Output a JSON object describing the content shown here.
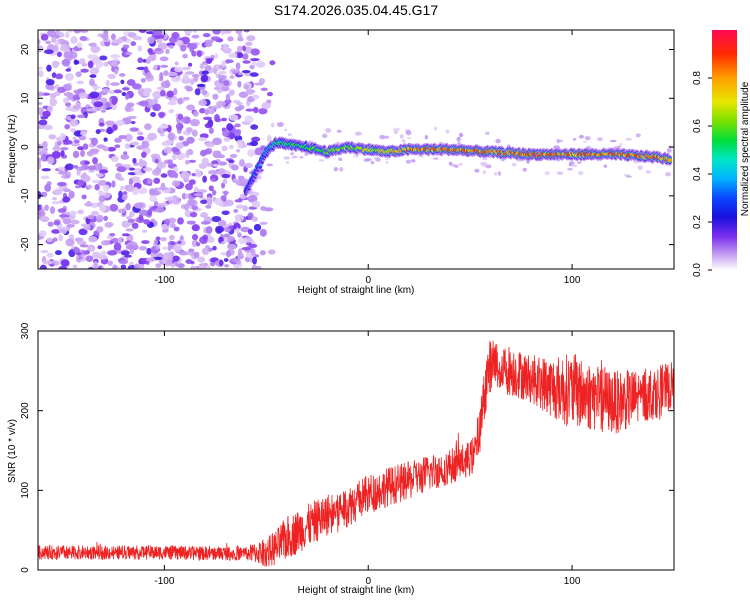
{
  "title": "S174.2026.035.04.45.G17",
  "chart_data": [
    {
      "type": "heatmap",
      "title": "S174.2026.035.04.45.G17",
      "xlabel": "Height of straight line (km)",
      "ylabel": "Frequency (Hz)",
      "xlim": [
        -162,
        150
      ],
      "ylim": [
        -25,
        24
      ],
      "x_ticks": [
        -100,
        0,
        100
      ],
      "y_ticks": [
        -20,
        -10,
        0,
        10,
        20
      ],
      "colorbar": {
        "label": "Normalized spectral amplitude",
        "range": [
          0,
          1
        ],
        "ticks": [
          "0.0",
          "0.2",
          "0.4",
          "0.6",
          "0.8"
        ]
      },
      "noise_region_x": [
        -162,
        -55
      ],
      "ridge_track": {
        "x": [
          -60,
          -55,
          -50,
          -45,
          -40,
          -30,
          -20,
          -10,
          0,
          10,
          20,
          40,
          60,
          80,
          100,
          120,
          140,
          148
        ],
        "freq": [
          -9,
          -5,
          -1,
          1,
          0.5,
          0,
          -1,
          0,
          -0.5,
          -1,
          -0.5,
          -0.5,
          -1,
          -1.5,
          -1.5,
          -1.5,
          -2,
          -2.5
        ],
        "amplitude": [
          0.3,
          0.35,
          0.4,
          0.55,
          0.6,
          0.6,
          0.7,
          0.7,
          0.75,
          0.8,
          0.9,
          0.95,
          0.9,
          0.95,
          0.9,
          0.95,
          0.95,
          0.9
        ]
      }
    },
    {
      "type": "line",
      "title": "",
      "xlabel": "Height of straight line (km)",
      "ylabel": "SNR (10 * v/v)",
      "xlim": [
        -162,
        150
      ],
      "ylim": [
        0,
        300
      ],
      "x_ticks": [
        -100,
        0,
        100
      ],
      "y_ticks": [
        0,
        100,
        200,
        300
      ],
      "series": [
        {
          "name": "SNR",
          "color": "#ee2222",
          "trend_x": [
            -162,
            -140,
            -120,
            -100,
            -80,
            -60,
            -50,
            -45,
            -40,
            -30,
            -20,
            -10,
            0,
            10,
            20,
            30,
            40,
            50,
            52,
            55,
            58,
            60,
            70,
            80,
            90,
            100,
            110,
            120,
            130,
            140,
            150
          ],
          "trend_y": [
            22,
            22,
            22,
            22,
            21,
            21,
            22,
            28,
            40,
            55,
            70,
            80,
            95,
            105,
            112,
            122,
            130,
            140,
            145,
            180,
            240,
            258,
            250,
            240,
            230,
            225,
            218,
            210,
            215,
            222,
            232
          ],
          "noise_x": [
            -162,
            -60,
            -40,
            50,
            58,
            80,
            100,
            120,
            150
          ],
          "noise_amp": [
            9,
            9,
            28,
            22,
            35,
            30,
            48,
            40,
            30
          ]
        }
      ]
    }
  ]
}
